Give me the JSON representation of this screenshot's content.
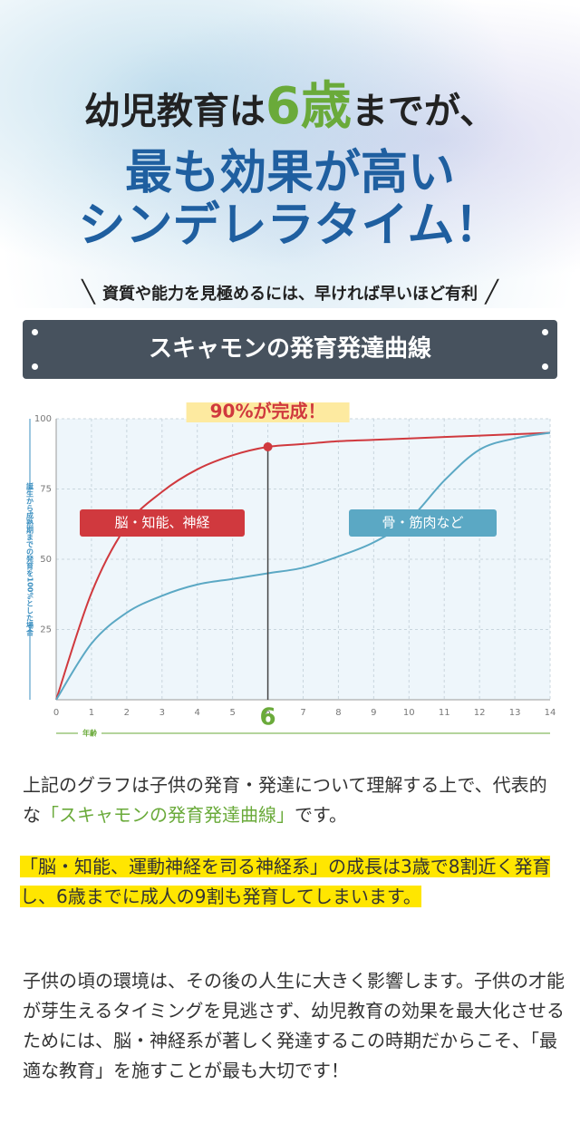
{
  "header": {
    "line1_pre": "幼児教育は",
    "line1_highlight": "6歳",
    "line1_post": "までが、",
    "line2": "最も効果が高い",
    "line3": "シンデレラタイム！",
    "tagline": "資質や能力を見極めるには、早ければ早いほど有利"
  },
  "banner": "スキャモンの発育発達曲線",
  "chart_data": {
    "type": "line",
    "ylabel": "誕生から成熟期までの発育を100%とした場合",
    "xlabel": "年齢",
    "annotation": "90%が完成！",
    "highlight_x": 6,
    "x": [
      0,
      1,
      2,
      3,
      4,
      5,
      6,
      7,
      8,
      9,
      10,
      11,
      12,
      13,
      14
    ],
    "xlim": [
      0,
      14
    ],
    "xticks": [
      0,
      1,
      2,
      3,
      4,
      5,
      6,
      7,
      8,
      9,
      10,
      11,
      12,
      13,
      14
    ],
    "ylim": [
      0,
      100
    ],
    "yticks": [
      25,
      50,
      75,
      100
    ],
    "grid": true,
    "series": [
      {
        "name": "脳・知能、神経",
        "color": "#d0393e",
        "values": [
          0,
          38,
          62,
          74,
          82,
          87,
          90,
          91,
          92,
          92.5,
          93,
          93.5,
          94,
          94.5,
          95
        ]
      },
      {
        "name": "骨・筋肉など",
        "color": "#5ba8c4",
        "values": [
          0,
          20,
          31,
          37,
          41,
          43,
          45,
          47,
          51,
          56,
          64,
          78,
          89,
          93,
          95
        ]
      }
    ]
  },
  "body": {
    "p1_pre": "上記のグラフは子供の発育・発達について理解する上で、代表的な",
    "p1_highlight": "「スキャモンの発育発達曲線」",
    "p1_post": "です。",
    "p2": "「脳・知能、運動神経を司る神経系」の成長は3歳で8割近く発育し、6歳までに成人の9割も発育してしまいます。",
    "p3": "子供の頃の環境は、その後の人生に大きく影響します。子供の才能が芽生えるタイミングを見逃さず、幼児教育の効果を最大化させるためには、脳・神経系が著しく発達するこの時期だからこそ、「最適な教育」を施すことが最も大切です！"
  }
}
